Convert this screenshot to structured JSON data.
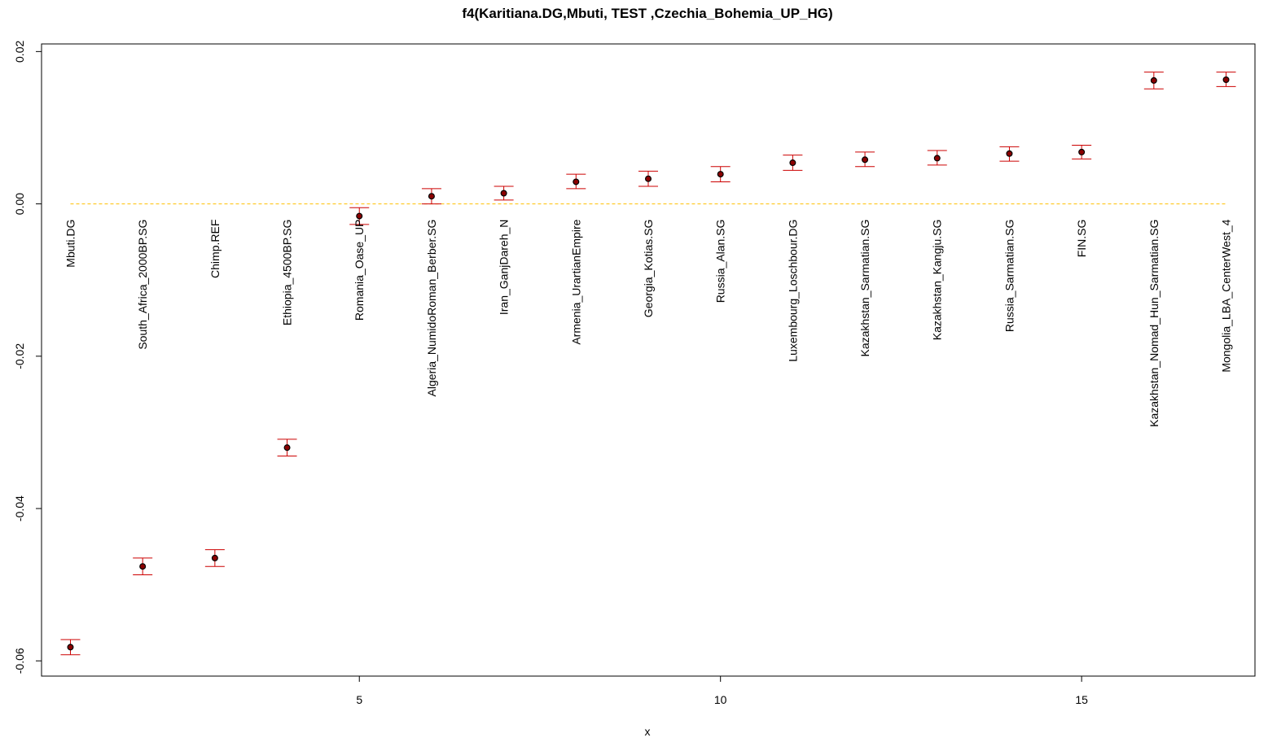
{
  "chart_data": {
    "type": "scatter",
    "title": "f4(Karitiana.DG,Mbuti, TEST ,Czechia_Bohemia_UP_HG)",
    "xlabel": "x",
    "ylabel": "",
    "xlim": [
      0.6,
      17.4
    ],
    "ylim": [
      -0.062,
      0.021
    ],
    "x_ticks": [
      5,
      10,
      15
    ],
    "y_ticks": [
      -0.06,
      -0.04,
      -0.02,
      0.0,
      0.02
    ],
    "x_tick_labels": [
      "5",
      "10",
      "15"
    ],
    "y_tick_labels": [
      "-0.06",
      "-0.04",
      "-0.02",
      "0.00",
      "0.02"
    ],
    "reference_line": {
      "y": 0.0,
      "style": "dashed",
      "color": "#FFC000"
    },
    "colors": {
      "point_fill": "#8B0000",
      "point_edge": "#000000",
      "error_bar": "#CC0000",
      "axis": "#000000"
    },
    "points": [
      {
        "x": 1,
        "label": "Mbuti.DG",
        "y": -0.0582,
        "lo": -0.0592,
        "hi": -0.0572
      },
      {
        "x": 2,
        "label": "South_Africa_2000BP.SG",
        "y": -0.0476,
        "lo": -0.0487,
        "hi": -0.0465
      },
      {
        "x": 3,
        "label": "Chimp.REF",
        "y": -0.0465,
        "lo": -0.0476,
        "hi": -0.0454
      },
      {
        "x": 4,
        "label": "Ethiopia_4500BP.SG",
        "y": -0.032,
        "lo": -0.0331,
        "hi": -0.0309
      },
      {
        "x": 5,
        "label": "Romania_Oase_UP",
        "y": -0.0016,
        "lo": -0.0027,
        "hi": -0.0005
      },
      {
        "x": 6,
        "label": "Algeria_NumidoRoman_Berber.SG",
        "y": 0.001,
        "lo": 0.0,
        "hi": 0.002
      },
      {
        "x": 7,
        "label": "Iran_GanjDareh_N",
        "y": 0.0014,
        "lo": 0.0005,
        "hi": 0.0023
      },
      {
        "x": 8,
        "label": "Armenia_UrartianEmpire",
        "y": 0.0029,
        "lo": 0.002,
        "hi": 0.0039
      },
      {
        "x": 9,
        "label": "Georgia_Kotias.SG",
        "y": 0.0033,
        "lo": 0.0023,
        "hi": 0.0043
      },
      {
        "x": 10,
        "label": "Russia_Alan.SG",
        "y": 0.0039,
        "lo": 0.0029,
        "hi": 0.0049
      },
      {
        "x": 11,
        "label": "Luxembourg_Loschbour.DG",
        "y": 0.0054,
        "lo": 0.0044,
        "hi": 0.0064
      },
      {
        "x": 12,
        "label": "Kazakhstan_Sarmatian.SG",
        "y": 0.0058,
        "lo": 0.0049,
        "hi": 0.0068
      },
      {
        "x": 13,
        "label": "Kazakhstan_Kangju.SG",
        "y": 0.006,
        "lo": 0.0051,
        "hi": 0.007
      },
      {
        "x": 14,
        "label": "Russia_Sarmatian.SG",
        "y": 0.0066,
        "lo": 0.0056,
        "hi": 0.0075
      },
      {
        "x": 15,
        "label": "FIN.SG",
        "y": 0.0068,
        "lo": 0.0059,
        "hi": 0.0077
      },
      {
        "x": 16,
        "label": "Kazakhstan_Nomad_Hun_Sarmatian.SG",
        "y": 0.0162,
        "lo": 0.0151,
        "hi": 0.0173
      },
      {
        "x": 17,
        "label": "Mongolia_LBA_CenterWest_4",
        "y": 0.0163,
        "lo": 0.0154,
        "hi": 0.0173
      }
    ]
  }
}
